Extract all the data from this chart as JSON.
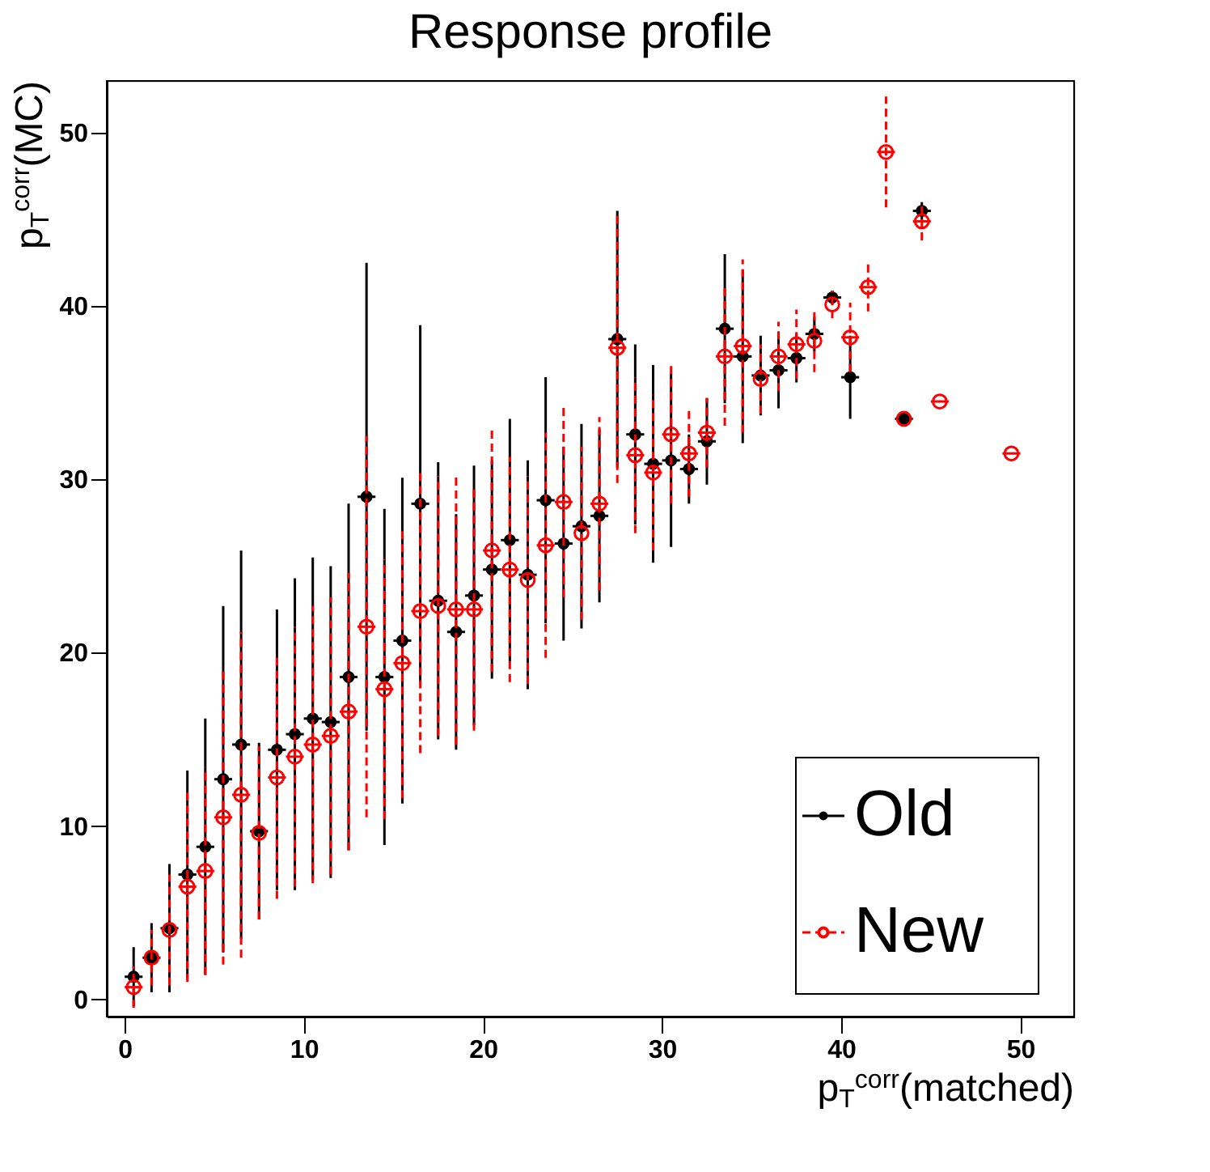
{
  "chart_data": {
    "type": "scatter",
    "title": "Response profile",
    "xlabel": "p$_{T}$$^{corr}$(matched)",
    "ylabel": "p$_{T}$$^{corr}$(MC)",
    "xlim": [
      -1,
      53
    ],
    "ylim": [
      -1,
      53
    ],
    "xticks": [
      0,
      10,
      20,
      30,
      40,
      50
    ],
    "yticks": [
      0,
      10,
      20,
      30,
      40,
      50
    ],
    "grid": false,
    "legend": "bottom right",
    "marker": "circle",
    "series": [
      {
        "name": "Old",
        "color": "#000000",
        "line_style": "solid",
        "x": [
          0.5,
          1.5,
          2.5,
          3.5,
          4.5,
          5.5,
          6.5,
          7.5,
          8.5,
          9.5,
          10.5,
          11.5,
          12.5,
          13.5,
          14.5,
          15.5,
          16.5,
          17.5,
          18.5,
          19.5,
          20.5,
          21.5,
          22.5,
          23.5,
          24.5,
          25.5,
          26.5,
          27.5,
          28.5,
          29.5,
          30.5,
          31.5,
          32.5,
          33.5,
          34.5,
          35.5,
          36.5,
          37.5,
          38.5,
          39.5,
          40.5,
          43.5,
          44.5
        ],
        "values": [
          1.3,
          2.4,
          4.1,
          7.2,
          8.8,
          12.7,
          14.7,
          9.7,
          14.4,
          15.3,
          16.2,
          16.0,
          18.6,
          29.0,
          18.6,
          20.7,
          28.6,
          23.0,
          21.2,
          23.3,
          24.8,
          26.5,
          24.5,
          28.8,
          26.3,
          27.3,
          27.9,
          38.1,
          32.6,
          30.9,
          31.1,
          30.6,
          32.2,
          38.7,
          37.1,
          36.0,
          36.3,
          37.0,
          38.4,
          40.5,
          35.9,
          33.5,
          45.5
        ],
        "errors": [
          1.7,
          2.0,
          3.7,
          6.0,
          7.4,
          10.0,
          11.2,
          5.1,
          8.1,
          9.0,
          9.3,
          9.0,
          10.0,
          13.5,
          9.7,
          9.4,
          10.3,
          8.0,
          6.8,
          7.5,
          6.3,
          7.0,
          6.6,
          7.1,
          5.6,
          5.9,
          5.0,
          7.4,
          5.2,
          5.7,
          5.0,
          2.0,
          2.5,
          4.3,
          5.0,
          2.3,
          2.2,
          1.4,
          1.0,
          0.4,
          2.4,
          null,
          0.5
        ],
        "xerrors": [
          0.5,
          0.5,
          0.5,
          0.5,
          0.5,
          0.5,
          0.5,
          0.5,
          0.5,
          0.5,
          0.5,
          0.5,
          0.5,
          0.5,
          0.5,
          0.5,
          0.5,
          0.5,
          0.5,
          0.5,
          0.5,
          0.5,
          0.5,
          0.5,
          0.5,
          0.5,
          0.5,
          0.5,
          0.5,
          0.5,
          0.5,
          0.5,
          0.5,
          0.5,
          0.5,
          0.5,
          0.5,
          0.5,
          0.5,
          0.5,
          0.5,
          0.5,
          0.5
        ]
      },
      {
        "name": "New",
        "color": "#ff0000",
        "line_style": "dashed",
        "x": [
          0.5,
          1.5,
          2.5,
          3.5,
          4.5,
          5.5,
          6.5,
          7.5,
          8.5,
          9.5,
          10.5,
          11.5,
          12.5,
          13.5,
          14.5,
          15.5,
          16.5,
          17.5,
          18.5,
          19.5,
          20.5,
          21.5,
          22.5,
          23.5,
          24.5,
          25.5,
          26.5,
          27.5,
          28.5,
          29.5,
          30.5,
          31.5,
          32.5,
          33.5,
          34.5,
          35.5,
          36.5,
          37.5,
          38.5,
          39.5,
          40.5,
          41.5,
          42.5,
          43.5,
          44.5,
          45.5,
          49.5
        ],
        "values": [
          0.7,
          2.4,
          4.0,
          6.5,
          7.4,
          10.5,
          11.8,
          9.6,
          12.8,
          14.0,
          14.7,
          15.2,
          16.6,
          21.5,
          17.9,
          19.4,
          22.4,
          22.7,
          22.5,
          22.5,
          25.9,
          24.8,
          24.2,
          26.2,
          28.7,
          26.9,
          28.6,
          37.6,
          31.4,
          30.4,
          32.6,
          31.5,
          32.7,
          37.1,
          37.7,
          35.8,
          37.1,
          37.8,
          38.0,
          40.1,
          38.2,
          41.1,
          48.9,
          33.5,
          44.9,
          34.5,
          31.5
        ],
        "errors": [
          1.2,
          1.6,
          3.2,
          5.5,
          6.0,
          8.5,
          9.4,
          5.0,
          7.0,
          7.5,
          8.0,
          8.0,
          8.0,
          11.0,
          7.5,
          7.8,
          8.2,
          7.5,
          7.8,
          7.0,
          7.0,
          6.5,
          6.0,
          6.5,
          5.5,
          5.0,
          5.0,
          7.8,
          4.5,
          4.5,
          4.0,
          2.5,
          2.0,
          4.0,
          5.0,
          2.0,
          2.0,
          2.0,
          1.8,
          0.8,
          2.0,
          1.4,
          3.2,
          null,
          1.1,
          null,
          null
        ],
        "xerrors": [
          0.5,
          null,
          null,
          0.5,
          0.5,
          0.5,
          0.5,
          null,
          0.5,
          0.5,
          0.5,
          0.5,
          0.5,
          0.5,
          0.5,
          0.5,
          0.5,
          null,
          0.5,
          0.5,
          0.5,
          0.5,
          null,
          0.5,
          0.5,
          null,
          0.5,
          0.5,
          0.5,
          0.5,
          0.5,
          0.5,
          0.5,
          0.5,
          0.5,
          null,
          0.5,
          0.5,
          null,
          null,
          0.5,
          0.5,
          0.5,
          null,
          0.5,
          0.5,
          0.5
        ]
      }
    ]
  }
}
